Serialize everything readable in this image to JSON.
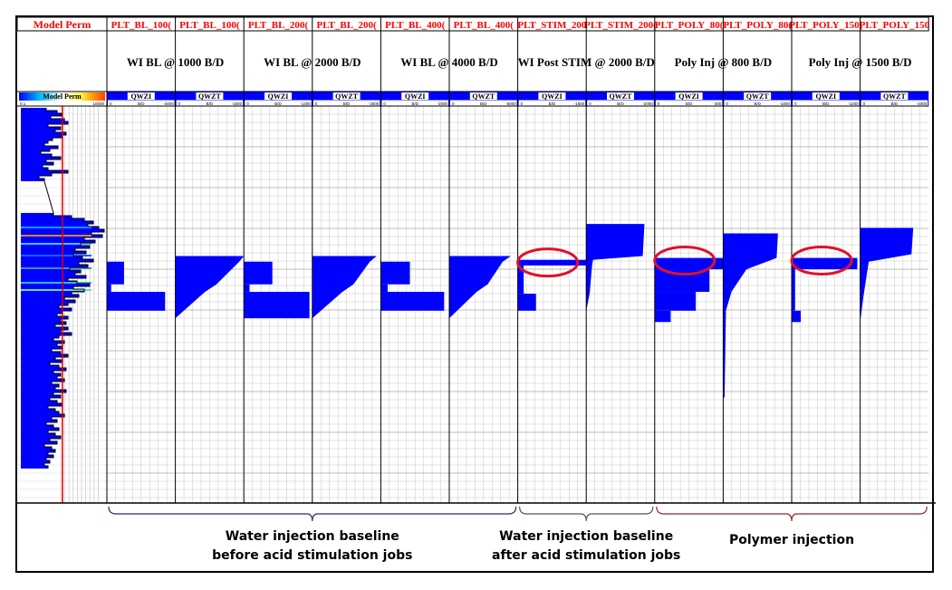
{
  "figure": {
    "model_track": {
      "header": "Model Perm",
      "scale_label": "Model Perm",
      "scale_min": "0.1",
      "scale_max": "10000"
    },
    "tracks": [
      {
        "id": "PLT_BL_1000_QWZI",
        "header": "PLT_BL_100(",
        "curve": "QWZI",
        "unit": "B/D",
        "scale_min": "0",
        "scale_max": "-4000"
      },
      {
        "id": "PLT_BL_1000_QWZT",
        "header": "PLT_BL_100(",
        "curve": "QWZT",
        "unit": "B/D",
        "scale_min": "0",
        "scale_max": "-1500"
      },
      {
        "id": "PLT_BL_2000_QWZI",
        "header": "PLT_BL_200(",
        "curve": "QWZI",
        "unit": "B/D",
        "scale_min": "0",
        "scale_max": "-1200"
      },
      {
        "id": "PLT_BL_2000_QWZT",
        "header": "PLT_BL_200(",
        "curve": "QWZT",
        "unit": "B/D",
        "scale_min": "0",
        "scale_max": "-2500"
      },
      {
        "id": "PLT_BL_4000_QWZI",
        "header": "PLT_BL_400(",
        "curve": "QWZI",
        "unit": "B/D",
        "scale_min": "0",
        "scale_max": "-2000"
      },
      {
        "id": "PLT_BL_4000_QWZT",
        "header": "PLT_BL_400(",
        "curve": "QWZT",
        "unit": "B/D",
        "scale_min": "0",
        "scale_max": "-5000"
      },
      {
        "id": "PLT_STIM_2000_QWZI",
        "header": "PLT_STIM_200",
        "curve": "QWZI",
        "unit": "B/D",
        "scale_min": "0",
        "scale_max": "-1500"
      },
      {
        "id": "PLT_STIM_2000_QWZT",
        "header": "PLT_STIM_200(",
        "curve": "QWZT",
        "unit": "B/D",
        "scale_min": "0",
        "scale_max": "-2000"
      },
      {
        "id": "PLT_POLY_800_QWZI",
        "header": "PLT_POLY_80(",
        "curve": "QWZI",
        "unit": "B/D",
        "scale_min": "0",
        "scale_max": "-300"
      },
      {
        "id": "PLT_POLY_800_QWZT",
        "header": "PLT_POLY_80(",
        "curve": "QWZT",
        "unit": "B/D",
        "scale_min": "0",
        "scale_max": "-1000"
      },
      {
        "id": "PLT_POLY_1500_QWZI",
        "header": "PLT_POLY_150(",
        "curve": "QWZI",
        "unit": "B/D",
        "scale_min": "0",
        "scale_max": "-1200"
      },
      {
        "id": "PLT_POLY_1500_QWZT",
        "header": "PLT_POLY_150",
        "curve": "QWZT",
        "unit": "B/D",
        "scale_min": "0",
        "scale_max": "-2000"
      }
    ],
    "group_titles": [
      {
        "text": "WI BL @ 1000 B/D",
        "span": [
          0,
          1
        ]
      },
      {
        "text": "WI BL @ 2000 B/D",
        "span": [
          2,
          3
        ]
      },
      {
        "text": "WI BL @ 4000 B/D",
        "span": [
          4,
          5
        ]
      },
      {
        "text": "WI Post STIM @ 2000 B/D",
        "span": [
          6,
          7
        ]
      },
      {
        "text": "Poly Inj @ 800 B/D",
        "span": [
          8,
          9
        ]
      },
      {
        "text": "Poly Inj @ 1500 B/D",
        "span": [
          10,
          11
        ]
      }
    ],
    "annotations": [
      {
        "line1": "Water injection baseline",
        "line2": "before acid stimulation jobs",
        "span": [
          0,
          5
        ],
        "brace_color": "#2a2a7a"
      },
      {
        "line1": "Water injection baseline",
        "line2": "after acid stimulation jobs",
        "span": [
          6,
          7
        ],
        "brace_color": "#555555"
      },
      {
        "line1": "Polymer injection",
        "line2": "",
        "span": [
          8,
          11
        ],
        "brace_color": "#8b2a2a"
      }
    ],
    "highlights": [
      {
        "track": 6,
        "note": "red ellipse"
      },
      {
        "track": 8,
        "note": "red ellipse"
      },
      {
        "track": 10,
        "note": "red ellipse"
      }
    ]
  },
  "colors": {
    "header_red": "#ff0000",
    "bar_blue": "#0000ff",
    "grid": "#c8c8c8",
    "ellipse_red": "#e0102a"
  },
  "chart_data": {
    "type": "bar",
    "y_axis": "depth, top to bottom, normalized 0 (top of interval) to 1 (bottom)",
    "x_axis_unit": "B/D",
    "series": [
      {
        "track": "PLT_BL_1000 QWZI",
        "segments": [
          {
            "depth_top": 0.36,
            "depth_bottom": 0.42,
            "rate": -1000
          },
          {
            "depth_top": 0.42,
            "depth_bottom": 0.44,
            "rate": -250
          },
          {
            "depth_top": 0.44,
            "depth_bottom": 0.49,
            "rate": -3400
          }
        ]
      },
      {
        "track": "PLT_BL_1000 QWZT",
        "profile": [
          {
            "depth": 0.345,
            "rate": -1500
          },
          {
            "depth": 0.36,
            "rate": -1400
          },
          {
            "depth": 0.42,
            "rate": -900
          },
          {
            "depth": 0.44,
            "rate": -650
          },
          {
            "depth": 0.51,
            "rate": 0
          }
        ]
      },
      {
        "track": "PLT_BL_2000 QWZI",
        "segments": [
          {
            "depth_top": 0.36,
            "depth_bottom": 0.42,
            "rate": -500
          },
          {
            "depth_top": 0.42,
            "depth_bottom": 0.44,
            "rate": -100
          },
          {
            "depth_top": 0.44,
            "depth_bottom": 0.51,
            "rate": -1150
          }
        ]
      },
      {
        "track": "PLT_BL_2000 QWZT",
        "profile": [
          {
            "depth": 0.345,
            "rate": -2350
          },
          {
            "depth": 0.36,
            "rate": -2100
          },
          {
            "depth": 0.42,
            "rate": -1500
          },
          {
            "depth": 0.44,
            "rate": -1100
          },
          {
            "depth": 0.51,
            "rate": 0
          }
        ]
      },
      {
        "track": "PLT_BL_4000 QWZI",
        "segments": [
          {
            "depth_top": 0.36,
            "depth_bottom": 0.42,
            "rate": -850
          },
          {
            "depth_top": 0.42,
            "depth_bottom": 0.44,
            "rate": -200
          },
          {
            "depth_top": 0.44,
            "depth_bottom": 0.49,
            "rate": -1850
          }
        ]
      },
      {
        "track": "PLT_BL_4000 QWZT",
        "profile": [
          {
            "depth": 0.345,
            "rate": -4500
          },
          {
            "depth": 0.36,
            "rate": -3900
          },
          {
            "depth": 0.42,
            "rate": -2800
          },
          {
            "depth": 0.44,
            "rate": -2000
          },
          {
            "depth": 0.51,
            "rate": 0
          }
        ]
      },
      {
        "track": "PLT_STIM_2000 QWZI",
        "segments": [
          {
            "depth_top": 0.355,
            "depth_bottom": 0.37,
            "rate": -1500
          },
          {
            "depth_top": 0.37,
            "depth_bottom": 0.445,
            "rate": -130
          },
          {
            "depth_top": 0.445,
            "depth_bottom": 0.49,
            "rate": -400
          }
        ]
      },
      {
        "track": "PLT_STIM_2000 QWZT",
        "profile": [
          {
            "depth": 0.26,
            "rate": -1700
          },
          {
            "depth": 0.345,
            "rate": -1650
          },
          {
            "depth": 0.355,
            "rate": -200
          },
          {
            "depth": 0.37,
            "rate": -170
          },
          {
            "depth": 0.445,
            "rate": -100
          },
          {
            "depth": 0.49,
            "rate": 0
          }
        ]
      },
      {
        "track": "PLT_POLY_800 QWZI",
        "segments": [
          {
            "depth_top": 0.35,
            "depth_bottom": 0.38,
            "rate": -300
          },
          {
            "depth_top": 0.38,
            "depth_bottom": 0.44,
            "rate": -240
          },
          {
            "depth_top": 0.44,
            "depth_bottom": 0.49,
            "rate": -180
          },
          {
            "depth_top": 0.49,
            "depth_bottom": 0.52,
            "rate": -70
          }
        ]
      },
      {
        "track": "PLT_POLY_800 QWZT",
        "profile": [
          {
            "depth": 0.285,
            "rate": -800
          },
          {
            "depth": 0.35,
            "rate": -780
          },
          {
            "depth": 0.38,
            "rate": -340
          },
          {
            "depth": 0.44,
            "rate": -120
          },
          {
            "depth": 0.49,
            "rate": -40
          },
          {
            "depth": 0.72,
            "rate": -20
          }
        ]
      },
      {
        "track": "PLT_POLY_1500 QWZI",
        "segments": [
          {
            "depth_top": 0.35,
            "depth_bottom": 0.38,
            "rate": -1150
          },
          {
            "depth_top": 0.38,
            "depth_bottom": 0.49,
            "rate": -60
          },
          {
            "depth_top": 0.49,
            "depth_bottom": 0.52,
            "rate": -160
          }
        ]
      },
      {
        "track": "PLT_POLY_1500 QWZT",
        "profile": [
          {
            "depth": 0.27,
            "rate": -1550
          },
          {
            "depth": 0.34,
            "rate": -1500
          },
          {
            "depth": 0.36,
            "rate": -250
          },
          {
            "depth": 0.45,
            "rate": -100
          },
          {
            "depth": 0.52,
            "rate": 0
          }
        ]
      }
    ],
    "model_perm": {
      "log_scale": true,
      "scale": [
        0.1,
        10000
      ]
    }
  }
}
